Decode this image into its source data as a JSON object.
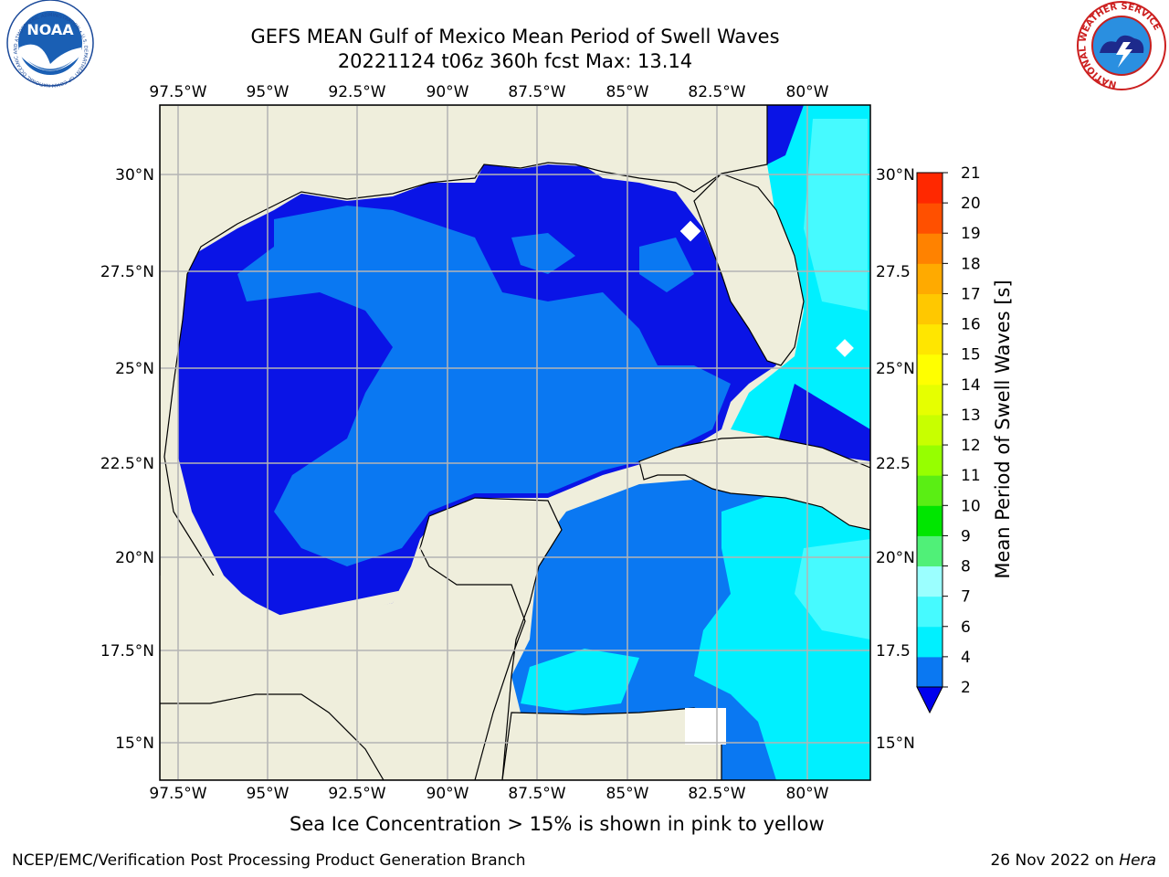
{
  "header": {
    "title_line1": "GEFS MEAN Gulf of Mexico Mean Period of Swell Waves",
    "title_line2": "20221124 t06z 360h fcst   Max: 13.14"
  },
  "logos": {
    "left": "noara-logo",
    "left_text": "NOAA",
    "left_ring_text": "NATIONAL OCEANIC AND ATMOSPHERIC ADMINISTRATION • U.S. DEPARTMENT OF COMMERCE",
    "right": "nws-logo",
    "right_ring_text": "NATIONAL WEATHER SERVICE"
  },
  "map": {
    "lon_ticks": [
      "97.5°W",
      "95°W",
      "92.5°W",
      "90°W",
      "87.5°W",
      "85°W",
      "82.5°W",
      "80°W"
    ],
    "lat_ticks_left": [
      "30°N",
      "27.5°N",
      "25°N",
      "22.5°N",
      "20°N",
      "17.5°N",
      "15°N"
    ],
    "lat_ticks_right": [
      "30°N",
      "27.5",
      "25°N",
      "22.5",
      "20°N",
      "17.5",
      "15°N"
    ],
    "colors": {
      "land": "#efeedc",
      "deep_blue": "#0a14e6",
      "mid_blue": "#0a78f2",
      "cyan": "#00f0ff",
      "light_cyan": "#46faff",
      "green_light": "#c8ff28",
      "green": "#5aee28",
      "grid": "#b4b4b4"
    }
  },
  "colorbar": {
    "label": "Mean Period of Swell Waves [s]",
    "ticks": [
      "2",
      "4",
      "6",
      "7",
      "8",
      "9",
      "10",
      "11",
      "12",
      "13",
      "14",
      "15",
      "16",
      "17",
      "18",
      "19",
      "20",
      "21"
    ],
    "colors": [
      "#0a78f2",
      "#00f0ff",
      "#46faff",
      "#9bffff",
      "#50f078",
      "#00e600",
      "#5aee14",
      "#96ff00",
      "#c8ff00",
      "#e6ff00",
      "#ffff00",
      "#ffe600",
      "#ffc800",
      "#ffaa00",
      "#ff8200",
      "#ff5000",
      "#ff2800"
    ],
    "under_color": "#0000ee"
  },
  "notes": {
    "ice": "Sea Ice Concentration > 15% is shown in pink to yellow"
  },
  "footer": {
    "left": "NCEP/EMC/Verification Post Processing Product Generation Branch",
    "right_date": "26 Nov 2022 on ",
    "right_host": "Hera"
  }
}
